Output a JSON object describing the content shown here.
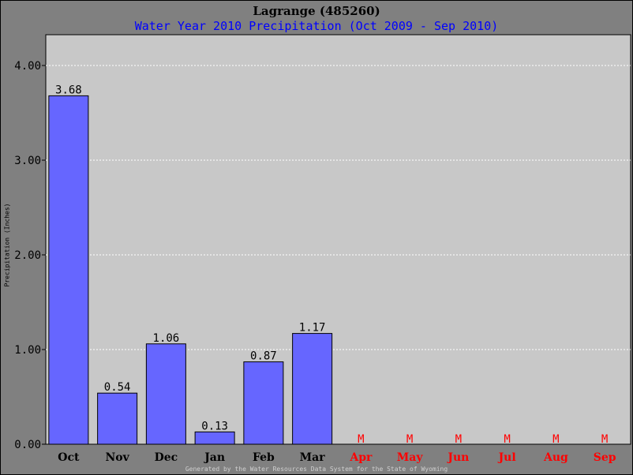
{
  "chart_data": {
    "type": "bar",
    "title": "Lagrange (485260)",
    "subtitle": "Water Year 2010 Precipitation (Oct 2009 - Sep 2010)",
    "ylabel": "Precipitation (Inches)",
    "categories": [
      "Oct",
      "Nov",
      "Dec",
      "Jan",
      "Feb",
      "Mar",
      "Apr",
      "May",
      "Jun",
      "Jul",
      "Aug",
      "Sep"
    ],
    "values": [
      3.68,
      0.54,
      1.06,
      0.13,
      0.87,
      1.17,
      null,
      null,
      null,
      null,
      null,
      null
    ],
    "value_labels": [
      "3.68",
      "0.54",
      "1.06",
      "0.13",
      "0.87",
      "1.17",
      "M",
      "M",
      "M",
      "M",
      "M",
      "M"
    ],
    "yticks": [
      "0.00",
      "1.00",
      "2.00",
      "3.00",
      "4.00"
    ],
    "ylim": [
      0,
      4.0
    ],
    "grid": true,
    "colors": {
      "bar": "#6666ff",
      "plot_bg": "#c8c8c8",
      "missing": "#ff0000",
      "subtitle": "#0000ff"
    }
  },
  "footer": "Generated by the Water Resources Data System for the State of Wyoming"
}
